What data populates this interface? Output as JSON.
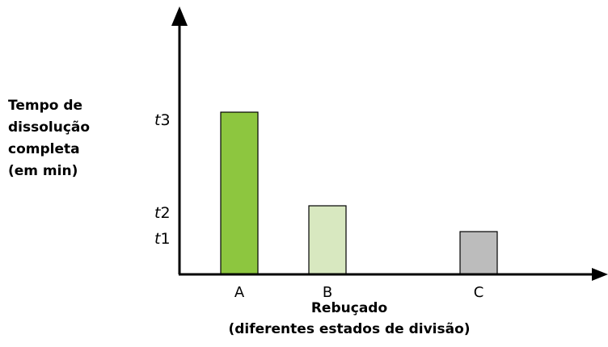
{
  "chart_data": {
    "type": "bar",
    "categories": [
      "A",
      "B",
      "C"
    ],
    "values": [
      3,
      2,
      1
    ],
    "value_labels": [
      "t3",
      "t2",
      "t1"
    ],
    "y_ticks": [
      {
        "label": "t3",
        "prefix": "t",
        "index": "3"
      },
      {
        "label": "t2",
        "prefix": "t",
        "index": "2"
      },
      {
        "label": "t1",
        "prefix": "t",
        "index": "1"
      }
    ],
    "ylabel": [
      "Tempo de",
      "dissolução",
      "completa",
      "(em min)"
    ],
    "xlabel": [
      "Rebuçado",
      "(diferentes estados de divisão)"
    ],
    "bar_colors": [
      "#8dc63f",
      "#d8e8c0",
      "#bcbcbc"
    ],
    "bar_stroke": "#000000",
    "axis_color": "#000000",
    "grid": false,
    "legend": "none"
  }
}
